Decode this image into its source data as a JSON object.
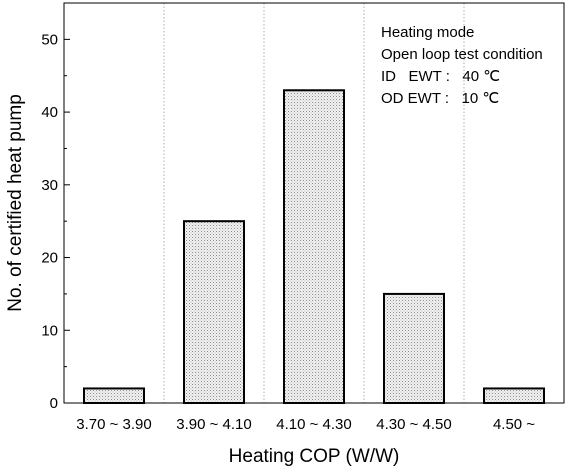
{
  "chart_data": {
    "type": "bar",
    "categories": [
      "3.70 ~ 3.90",
      "3.90 ~ 4.10",
      "4.10 ~ 4.30",
      "4.30 ~ 4.50",
      "4.50 ~"
    ],
    "values": [
      2,
      25,
      43,
      15,
      2
    ],
    "title": "",
    "xlabel": "Heating COP (W/W)",
    "ylabel": "No. of certified heat pump",
    "ylim": [
      0,
      55
    ],
    "yticks": [
      0,
      10,
      20,
      30,
      40,
      50
    ],
    "grid": "vertical dotted between categories",
    "legend": "none",
    "bar_fill": "light gray dotted hatch",
    "annotations": [
      "Heating mode",
      "Open loop test condition",
      "ID   EWT :   40 ℃",
      "OD EWT :   10 ℃"
    ]
  },
  "colors": {
    "bar_fill": "#e6e6e6",
    "bar_stroke": "#000000",
    "grid": "#9a9a9a",
    "axis": "#000000"
  }
}
